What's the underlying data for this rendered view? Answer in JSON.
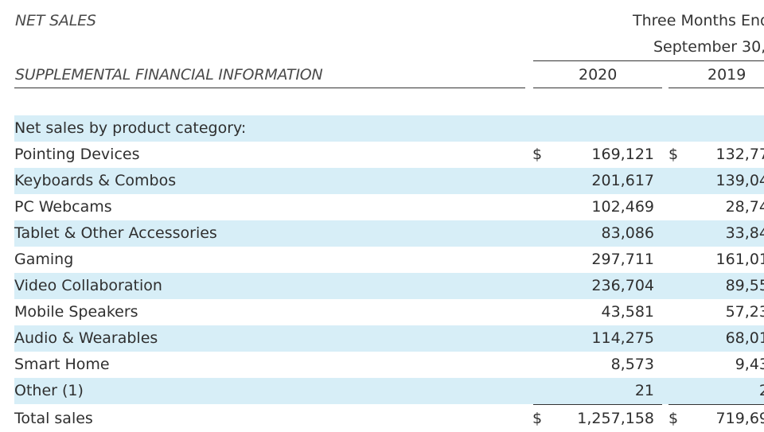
{
  "header": {
    "left_title": "NET SALES",
    "left_subtitle": "SUPPLEMENTAL FINANCIAL INFORMATION",
    "period_line1": "Three Months End",
    "period_line2": "September 30,",
    "col_2020": "2020",
    "col_2019": "2019"
  },
  "section_title": "Net sales by product category:",
  "currency_symbol": "$",
  "rows": [
    {
      "label": "Pointing Devices",
      "v2020": "169,121",
      "v2019": "132,77"
    },
    {
      "label": "Keyboards & Combos",
      "v2020": "201,617",
      "v2019": "139,04"
    },
    {
      "label": "PC Webcams",
      "v2020": "102,469",
      "v2019": "28,74"
    },
    {
      "label": "Tablet & Other Accessories",
      "v2020": "83,086",
      "v2019": "33,84"
    },
    {
      "label": "Gaming",
      "v2020": "297,711",
      "v2019": "161,01"
    },
    {
      "label": "Video Collaboration",
      "v2020": "236,704",
      "v2019": "89,55"
    },
    {
      "label": "Mobile Speakers",
      "v2020": "43,581",
      "v2019": "57,23"
    },
    {
      "label": "Audio & Wearables",
      "v2020": "114,275",
      "v2019": "68,01"
    },
    {
      "label": "Smart Home",
      "v2020": "8,573",
      "v2019": "9,43"
    },
    {
      "label": "Other (1)",
      "v2020": "21",
      "v2019": "2"
    }
  ],
  "total": {
    "label": "Total sales",
    "v2020": "1,257,158",
    "v2019": "719,69"
  }
}
